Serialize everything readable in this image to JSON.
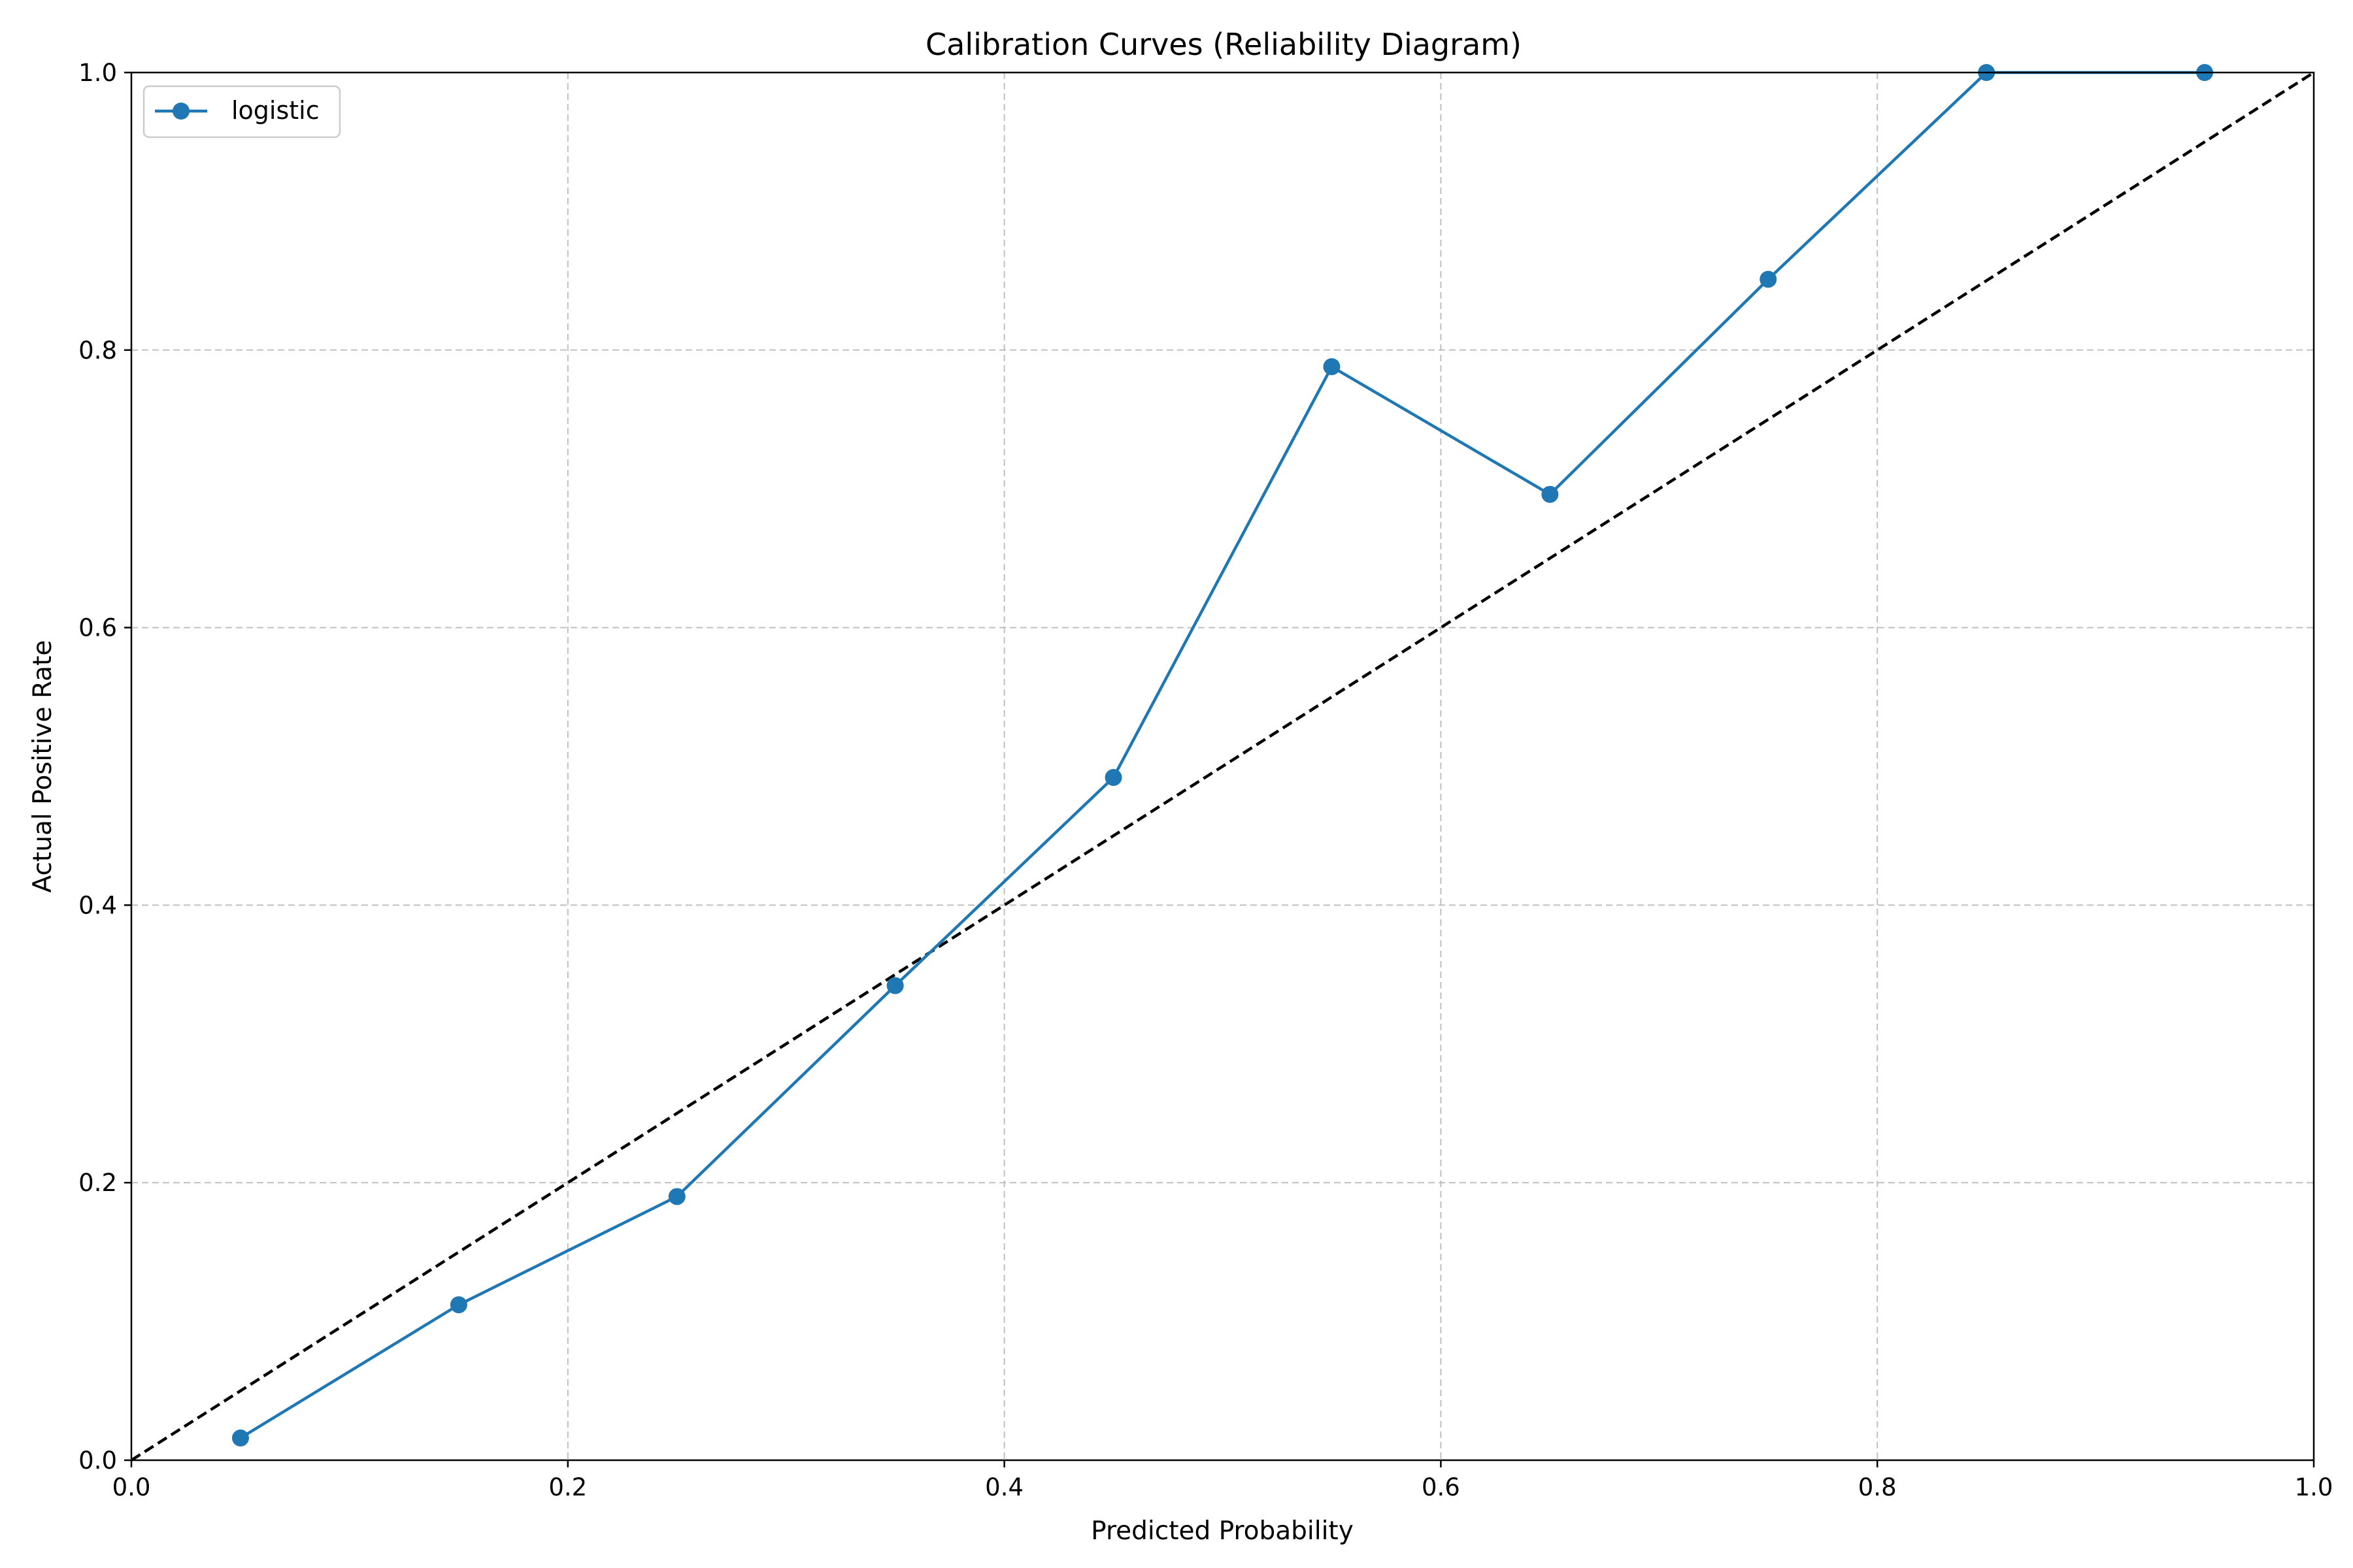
{
  "chart_data": {
    "type": "line",
    "title": "Calibration Curves (Reliability Diagram)",
    "xlabel": "Predicted Probability",
    "ylabel": "Actual Positive Rate",
    "xlim": [
      0,
      1
    ],
    "ylim": [
      0,
      1
    ],
    "xticks": [
      "0.0",
      "0.2",
      "0.4",
      "0.6",
      "0.8",
      "1.0"
    ],
    "yticks": [
      "0.0",
      "0.2",
      "0.4",
      "0.6",
      "0.8",
      "1.0"
    ],
    "grid": true,
    "legend_position": "top-left",
    "series": [
      {
        "name": "logistic",
        "color": "#1f77b4",
        "marker": "circle",
        "x": [
          0.05,
          0.15,
          0.25,
          0.35,
          0.45,
          0.55,
          0.65,
          0.75,
          0.85,
          0.95
        ],
        "y": [
          0.016,
          0.112,
          0.19,
          0.342,
          0.492,
          0.788,
          0.696,
          0.851,
          1.0,
          1.0
        ]
      }
    ],
    "reference_line": {
      "x": [
        0,
        1
      ],
      "y": [
        0,
        1
      ],
      "color": "#000000",
      "style": "dashed"
    }
  }
}
